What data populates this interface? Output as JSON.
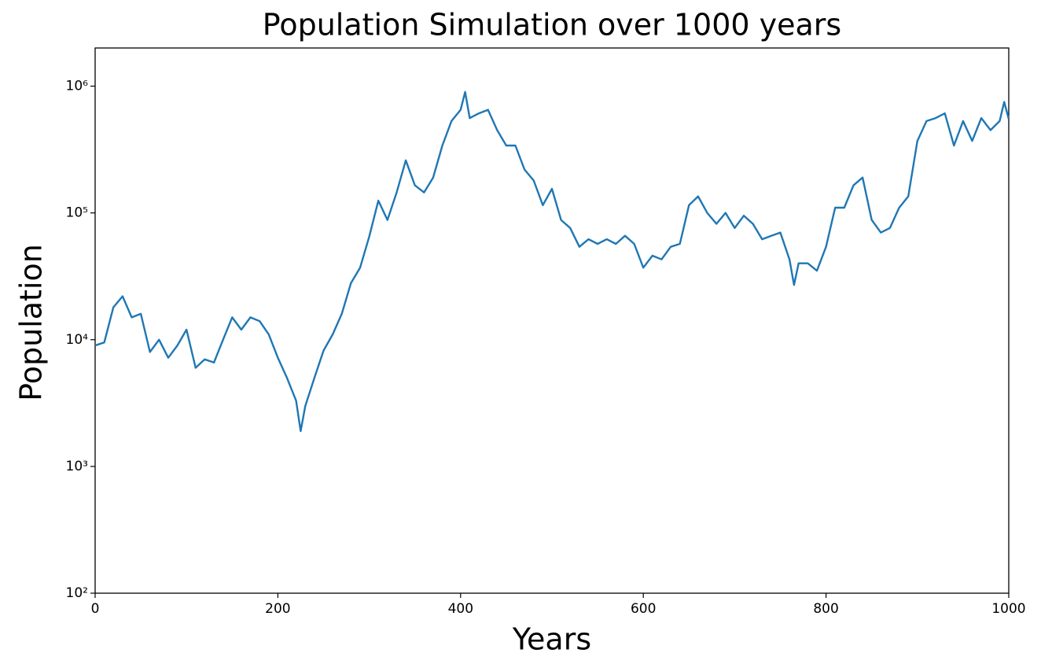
{
  "chart_data": {
    "type": "line",
    "title": "Population Simulation over 1000 years",
    "xlabel": "Years",
    "ylabel": "Population",
    "x": [
      0,
      10,
      20,
      30,
      40,
      50,
      60,
      70,
      80,
      90,
      100,
      110,
      120,
      130,
      140,
      150,
      160,
      170,
      180,
      190,
      200,
      210,
      220,
      225,
      230,
      240,
      250,
      260,
      270,
      280,
      290,
      300,
      310,
      320,
      330,
      340,
      350,
      360,
      370,
      380,
      390,
      400,
      405,
      410,
      420,
      430,
      440,
      450,
      460,
      470,
      480,
      490,
      500,
      510,
      520,
      530,
      540,
      550,
      560,
      570,
      580,
      590,
      600,
      610,
      620,
      630,
      640,
      650,
      660,
      670,
      680,
      690,
      700,
      710,
      720,
      730,
      740,
      750,
      760,
      765,
      770,
      780,
      790,
      800,
      810,
      820,
      830,
      840,
      850,
      860,
      870,
      880,
      890,
      900,
      910,
      920,
      930,
      940,
      950,
      960,
      970,
      980,
      990,
      995,
      1000
    ],
    "values": [
      9000,
      9500,
      18000,
      22000,
      15000,
      16000,
      8000,
      10000,
      7200,
      9000,
      12000,
      6000,
      7000,
      6600,
      10000,
      15000,
      12000,
      15000,
      14000,
      11000,
      7200,
      5000,
      3300,
      1900,
      3000,
      5000,
      8200,
      11000,
      16000,
      28000,
      37000,
      65000,
      125000,
      88000,
      145000,
      260000,
      165000,
      145000,
      190000,
      340000,
      530000,
      650000,
      900000,
      560000,
      610000,
      650000,
      450000,
      340000,
      340000,
      220000,
      180000,
      115000,
      155000,
      88000,
      76000,
      54000,
      62000,
      57000,
      62000,
      57000,
      66000,
      57000,
      37000,
      46000,
      43000,
      54000,
      57000,
      115000,
      135000,
      100000,
      82000,
      100000,
      76000,
      95000,
      82000,
      62000,
      66000,
      70000,
      43000,
      27000,
      40000,
      40000,
      35000,
      54000,
      110000,
      110000,
      165000,
      190000,
      88000,
      70000,
      76000,
      110000,
      135000,
      370000,
      530000,
      560000,
      610000,
      340000,
      530000,
      370000,
      560000,
      450000,
      530000,
      750000,
      550000
    ],
    "color": "#1f77b4",
    "xlim": [
      0,
      1000
    ],
    "xticks": [
      0,
      200,
      400,
      600,
      800,
      1000
    ],
    "ylim": [
      100,
      2000000
    ],
    "log_y": true,
    "yticks": [
      {
        "value": 100,
        "label": "10²"
      },
      {
        "value": 1000,
        "label": "10³"
      },
      {
        "value": 10000,
        "label": "10⁴"
      },
      {
        "value": 100000,
        "label": "10⁵"
      },
      {
        "value": 1000000,
        "label": "10⁶"
      }
    ]
  }
}
